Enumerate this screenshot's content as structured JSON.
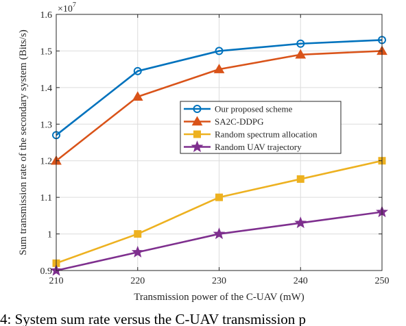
{
  "chart_data": {
    "type": "line",
    "xlabel": "Transmission power of the C-UAV (mW)",
    "ylabel": "Sum transmission rate of the secondary system (Bits/s)",
    "x": [
      210,
      220,
      230,
      240,
      250
    ],
    "xticks": [
      "210",
      "220",
      "230",
      "240",
      "250"
    ],
    "xlim": [
      210,
      250
    ],
    "ylim": [
      0.9,
      1.6
    ],
    "yticks": [
      "0.9",
      "1",
      "1.1",
      "1.2",
      "1.3",
      "1.4",
      "1.5",
      "1.6"
    ],
    "y_multiplier_base": "×10",
    "y_multiplier_exp": "7",
    "grid": true,
    "legend_position": "center-right",
    "series": [
      {
        "name": "Our proposed scheme",
        "values": [
          1.27,
          1.445,
          1.5,
          1.52,
          1.53
        ],
        "color": "#0072BD",
        "marker": "circle"
      },
      {
        "name": "SA2C-DDPG",
        "values": [
          1.2,
          1.375,
          1.45,
          1.49,
          1.5
        ],
        "color": "#D95319",
        "marker": "triangle"
      },
      {
        "name": "Random spectrum allocation",
        "values": [
          0.92,
          1.0,
          1.1,
          1.15,
          1.2
        ],
        "color": "#EDB120",
        "marker": "square"
      },
      {
        "name": "Random UAV trajectory",
        "values": [
          0.9,
          0.95,
          1.0,
          1.03,
          1.06
        ],
        "color": "#7E2F8E",
        "marker": "star"
      }
    ]
  },
  "caption": "4: System sum rate versus the C-UAV transmission p"
}
